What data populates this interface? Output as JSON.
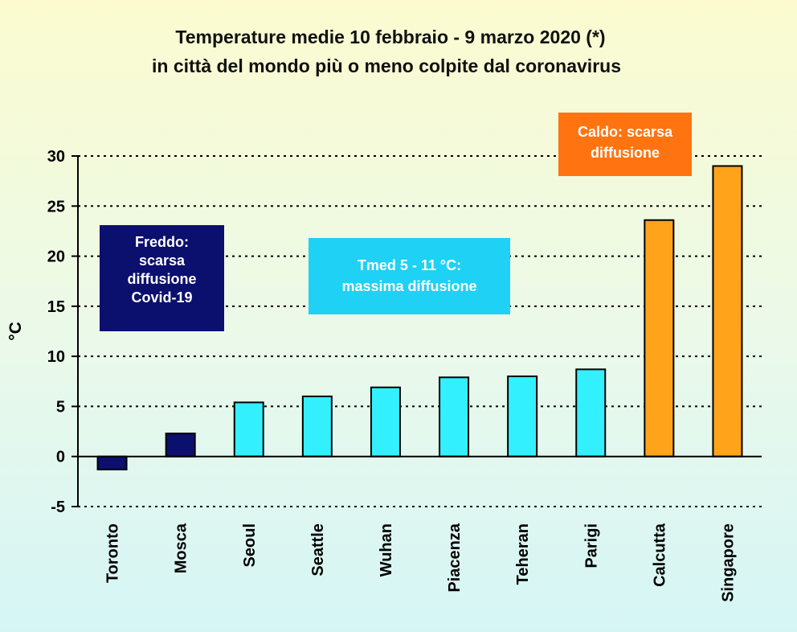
{
  "chart_data": {
    "type": "bar",
    "title_lines": [
      "Temperature medie 10 febbraio - 9 marzo 2020 (*)",
      "in città del mondo più o meno colpite dal coronavirus"
    ],
    "ylabel": "°C",
    "xlabel": "",
    "ylim": [
      -5,
      30
    ],
    "yticks": [
      -5,
      0,
      5,
      10,
      15,
      20,
      25,
      30
    ],
    "grid": "dotted horizontal",
    "categories": [
      "Toronto",
      "Mosca",
      "Seoul",
      "Seattle",
      "Wuhan",
      "Piacenza",
      "Teheran",
      "Parigi",
      "Calcutta",
      "Singapore"
    ],
    "values": [
      -1.3,
      2.3,
      5.4,
      6.0,
      6.9,
      7.9,
      8.0,
      8.7,
      23.6,
      29.0
    ],
    "groups": [
      "cold",
      "cold",
      "mild",
      "mild",
      "mild",
      "mild",
      "mild",
      "mild",
      "hot",
      "hot"
    ],
    "colors": {
      "cold": "#0b0f6e",
      "mild": "#33f0ff",
      "hot": "#ffa31a"
    },
    "annotations": [
      {
        "group": "cold",
        "lines": [
          "Freddo:",
          "scarsa",
          "diffusione",
          "Covid-19"
        ],
        "bg": "#0b0f6e",
        "color": "#ffffff"
      },
      {
        "group": "mild",
        "lines": [
          "Tmed 5 - 11 °C:",
          "massima diffusione"
        ],
        "bg": "#1ed1f5",
        "color": "#ffffff"
      },
      {
        "group": "hot",
        "lines": [
          "Caldo: scarsa",
          "diffusione"
        ],
        "bg": "#ff7411",
        "color": "#ffffff"
      }
    ]
  }
}
